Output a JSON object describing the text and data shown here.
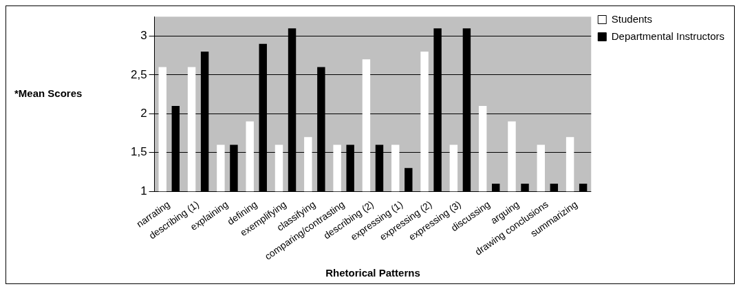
{
  "chart_data": {
    "type": "bar",
    "xlabel": "Rhetorical Patterns",
    "ylabel": "*Mean Scores",
    "categories": [
      "narrating",
      "describing (1)",
      "explaining",
      "defining",
      "exemplifying",
      "classifying",
      "comparing/contrasting",
      "describing (2)",
      "expressing (1)",
      "expressing (2)",
      "expressing (3)",
      "discussing",
      "arguing",
      "drawing conclusions",
      "summarizing"
    ],
    "series": [
      {
        "name": "Students",
        "color": "#ffffff",
        "values": [
          2.6,
          2.6,
          1.6,
          1.9,
          1.6,
          1.7,
          1.6,
          2.7,
          1.6,
          2.8,
          1.6,
          2.1,
          1.9,
          1.6,
          1.7
        ]
      },
      {
        "name": "Departmental Instructors",
        "color": "#000000",
        "values": [
          2.1,
          2.8,
          1.6,
          2.9,
          3.1,
          2.6,
          1.6,
          1.6,
          1.3,
          3.1,
          3.1,
          1.1,
          1.1,
          1.1,
          1.1
        ]
      }
    ],
    "ylim": [
      1,
      3.25
    ],
    "yticks": [
      1,
      {
        "value": 1.5,
        "label": "1,5"
      },
      2,
      {
        "value": 2.5,
        "label": "2,5"
      },
      3
    ],
    "grid": "y",
    "legend": "top right"
  }
}
